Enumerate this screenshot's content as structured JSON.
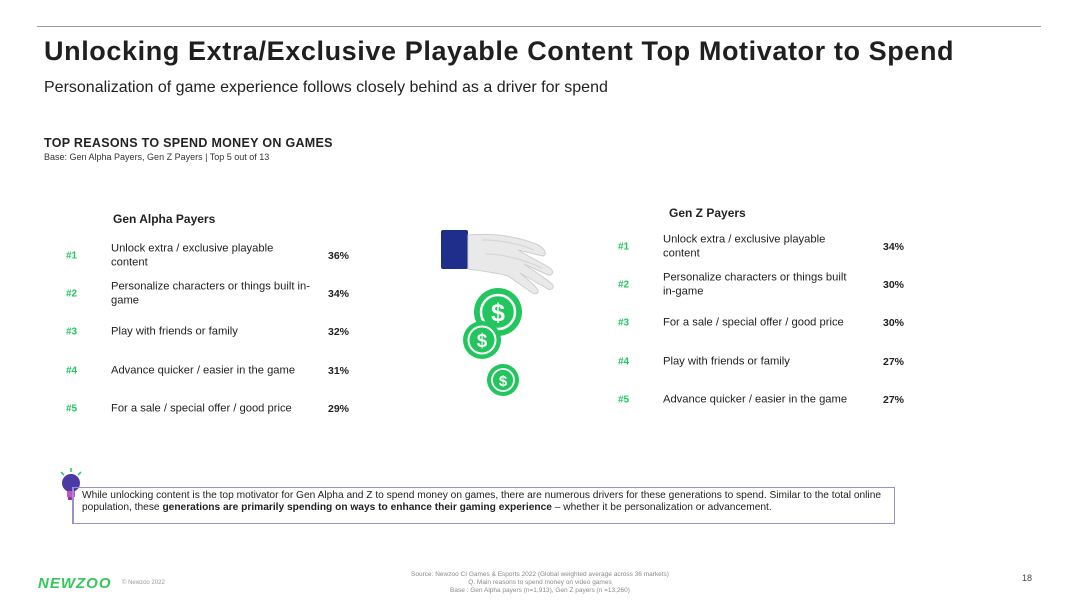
{
  "header": {
    "title": "Unlocking Extra/Exclusive Playable Content Top Motivator to Spend",
    "subtitle": "Personalization of game experience follows closely behind as a driver for spend"
  },
  "section": {
    "title": "TOP REASONS TO SPEND MONEY ON GAMES",
    "base": "Base: Gen Alpha Payers, Gen Z Payers | Top 5 out of 13"
  },
  "chart_data": {
    "type": "table",
    "title": "TOP REASONS TO SPEND MONEY ON GAMES",
    "colors": {
      "rank": "#22c55e",
      "accent": "#9a8fcf",
      "coin": "#22c55e",
      "sleeve": "#1f2e8a"
    },
    "groups": [
      {
        "name": "Gen Alpha Payers",
        "rows": [
          {
            "rank": "#1",
            "label": "Unlock extra / exclusive playable content",
            "value": 36,
            "display": "36%"
          },
          {
            "rank": "#2",
            "label": "Personalize characters or things built in-game",
            "value": 34,
            "display": "34%"
          },
          {
            "rank": "#3",
            "label": "Play with friends or family",
            "value": 32,
            "display": "32%"
          },
          {
            "rank": "#4",
            "label": "Advance quicker / easier in the game",
            "value": 31,
            "display": "31%"
          },
          {
            "rank": "#5",
            "label": "For a sale / special offer / good price",
            "value": 29,
            "display": "29%"
          }
        ]
      },
      {
        "name": "Gen Z Payers",
        "rows": [
          {
            "rank": "#1",
            "label": "Unlock extra / exclusive playable content",
            "value": 34,
            "display": "34%"
          },
          {
            "rank": "#2",
            "label": "Personalize characters or things built in-game",
            "value": 30,
            "display": "30%"
          },
          {
            "rank": "#3",
            "label": "For a sale / special offer / good price",
            "value": 30,
            "display": "30%"
          },
          {
            "rank": "#4",
            "label": "Play with friends or family",
            "value": 27,
            "display": "27%"
          },
          {
            "rank": "#5",
            "label": "Advance quicker / easier in the game",
            "value": 27,
            "display": "27%"
          }
        ]
      }
    ]
  },
  "insight": {
    "icon": "lightbulb-icon",
    "text_before": "While unlocking content is the top motivator for Gen Alpha and Z to spend money on games, there are numerous drivers for these generations to spend. Similar to the total online population, these ",
    "text_bold": "generations are primarily spending on ways to enhance their gaming experience",
    "text_after": " – whether it be personalization or advancement."
  },
  "footer": {
    "logo": "NEWZOO",
    "logo_note": "© Newzoo 2022",
    "source_lines": [
      "Source: Newzoo CI Games & Esports 2022 (Global weighted average across 36 markets)",
      "Q. Main reasons to spend money on video games",
      "Base : Gen Alpha payers (n=1,913), Gen Z payers (n =13,260)"
    ],
    "page_number": "18"
  }
}
